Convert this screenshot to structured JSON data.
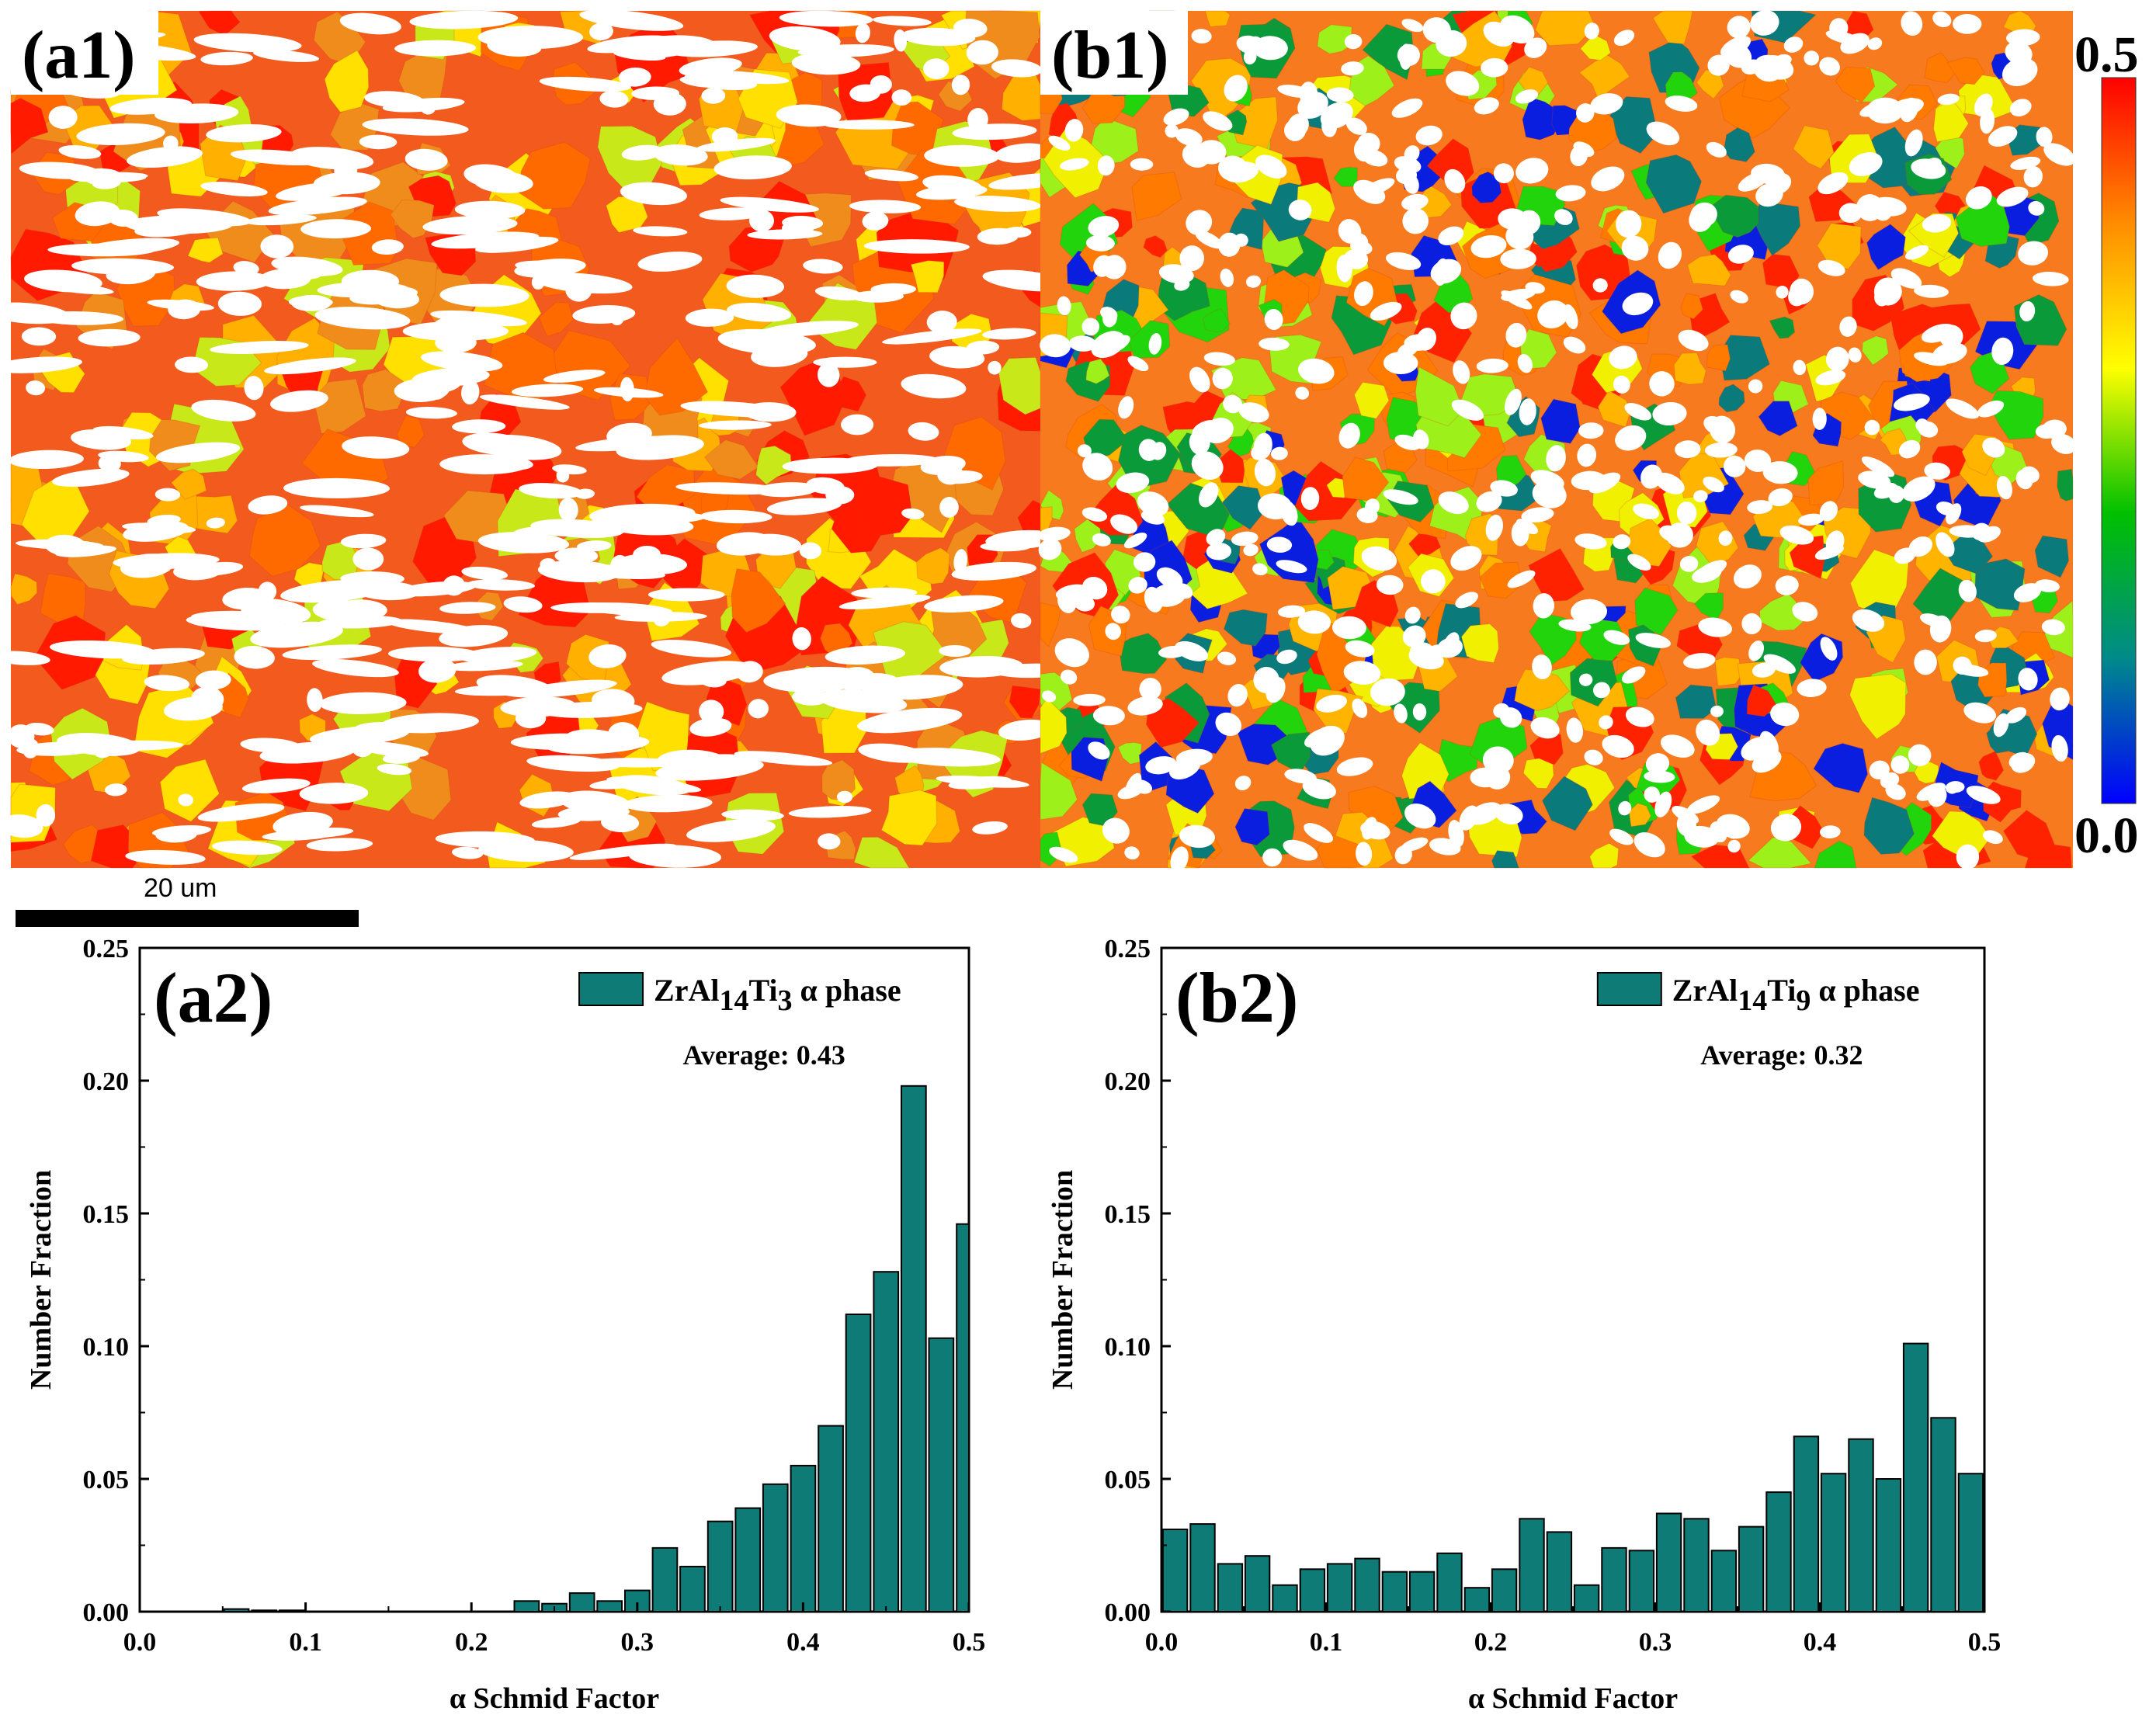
{
  "maps": {
    "a1": {
      "label": "(a1)",
      "base_color": "#f25a1e",
      "accent_colors": [
        "#ff1a00",
        "#ff6a00",
        "#f08c1c",
        "#ffb000",
        "#ffe000",
        "#c8e81a"
      ]
    },
    "b1": {
      "label": "(b1)",
      "base_color": "#f77a1e",
      "accent_colors": [
        "#ff2200",
        "#ff7a00",
        "#ffb400",
        "#f0f000",
        "#9ef01a",
        "#22d40c",
        "#0a9a3a",
        "#0a7a7a",
        "#0a1ee0"
      ]
    }
  },
  "colorbar": {
    "max_label": "0.5",
    "min_label": "0.0",
    "stops": [
      "#ff0000",
      "#ff8c00",
      "#ffff00",
      "#00c000",
      "#008a8a",
      "#0000ff"
    ]
  },
  "scale_bar": {
    "label": "20 um"
  },
  "bar_color": "#0f7b77",
  "chart_data": [
    {
      "type": "bar",
      "panel_label": "(a2)",
      "legend": {
        "prefix": "ZrAl",
        "sub1": "14",
        "mid": "Ti",
        "sub2": "3",
        "suffix": " α phase"
      },
      "annotation": "Average: 0.43",
      "xlabel": "α Schmid Factor",
      "ylabel": "Number Fraction",
      "xlim": [
        0,
        0.5
      ],
      "ylim": [
        0,
        0.25
      ],
      "xticks": [
        "0.0",
        "0.1",
        "0.2",
        "0.3",
        "0.4",
        "0.5"
      ],
      "yticks": [
        "0.00",
        "0.05",
        "0.10",
        "0.15",
        "0.20",
        "0.25"
      ],
      "bin_width": 0.0167,
      "bin_centers": [
        0.0583,
        0.075,
        0.0917,
        0.2333,
        0.25,
        0.2667,
        0.2833,
        0.3,
        0.3167,
        0.3333,
        0.35,
        0.3667,
        0.3833,
        0.4,
        0.4167,
        0.4333,
        0.45,
        0.4667,
        0.4833,
        0.5
      ],
      "values": [
        0.001,
        0.0005,
        0.0005,
        0.004,
        0.003,
        0.007,
        0.004,
        0.008,
        0.024,
        0.017,
        0.034,
        0.039,
        0.048,
        0.055,
        0.07,
        0.112,
        0.128,
        0.198,
        0.103,
        0.146
      ]
    },
    {
      "type": "bar",
      "panel_label": "(b2)",
      "legend": {
        "prefix": "ZrAl",
        "sub1": "14",
        "mid": "Ti",
        "sub2": "9",
        "suffix": " α phase"
      },
      "annotation": "Average: 0.32",
      "xlabel": "α Schmid Factor",
      "ylabel": "Number Fraction",
      "xlim": [
        0,
        0.5
      ],
      "ylim": [
        0,
        0.25
      ],
      "xticks": [
        "0.0",
        "0.1",
        "0.2",
        "0.3",
        "0.4",
        "0.5"
      ],
      "yticks": [
        "0.00",
        "0.05",
        "0.10",
        "0.15",
        "0.20",
        "0.25"
      ],
      "bin_width": 0.0167,
      "bin_centers": [
        0.0083,
        0.025,
        0.0417,
        0.0583,
        0.075,
        0.0917,
        0.1083,
        0.125,
        0.1417,
        0.1583,
        0.175,
        0.1917,
        0.2083,
        0.225,
        0.2417,
        0.2583,
        0.275,
        0.2917,
        0.3083,
        0.325,
        0.3417,
        0.3583,
        0.375,
        0.3917,
        0.4083,
        0.425,
        0.4417,
        0.4583,
        0.475,
        0.4917
      ],
      "values": [
        0.031,
        0.033,
        0.018,
        0.021,
        0.01,
        0.016,
        0.018,
        0.02,
        0.015,
        0.015,
        0.022,
        0.009,
        0.016,
        0.035,
        0.03,
        0.01,
        0.024,
        0.023,
        0.037,
        0.035,
        0.023,
        0.032,
        0.045,
        0.066,
        0.052,
        0.065,
        0.05,
        0.101,
        0.073,
        0.052
      ]
    }
  ]
}
